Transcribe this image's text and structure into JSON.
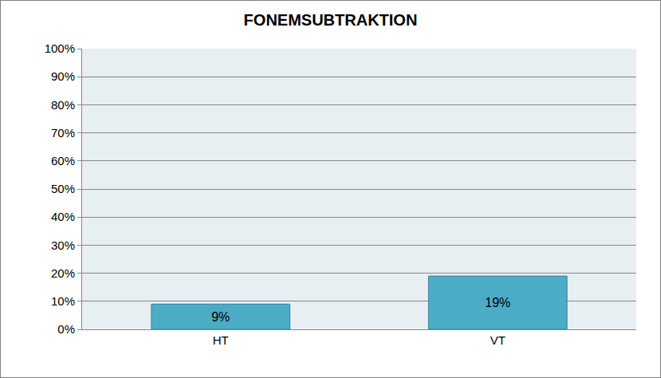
{
  "chart_data": {
    "type": "bar",
    "title": "FONEMSUBTRAKTION",
    "categories": [
      "HT",
      "VT"
    ],
    "values": [
      9,
      19
    ],
    "value_labels": [
      "9%",
      "19%"
    ],
    "color": "#4bacc6",
    "data_labels": true,
    "ylim": [
      0,
      100
    ],
    "yticks": [
      {
        "value": 0,
        "label": "0%"
      },
      {
        "value": 10,
        "label": "10%"
      },
      {
        "value": 20,
        "label": "20%"
      },
      {
        "value": 30,
        "label": "30%"
      },
      {
        "value": 40,
        "label": "40%"
      },
      {
        "value": 50,
        "label": "50%"
      },
      {
        "value": 60,
        "label": "60%"
      },
      {
        "value": 70,
        "label": "70%"
      },
      {
        "value": 80,
        "label": "80%"
      },
      {
        "value": 90,
        "label": "90%"
      },
      {
        "value": 100,
        "label": "100%"
      }
    ],
    "grid": true
  }
}
